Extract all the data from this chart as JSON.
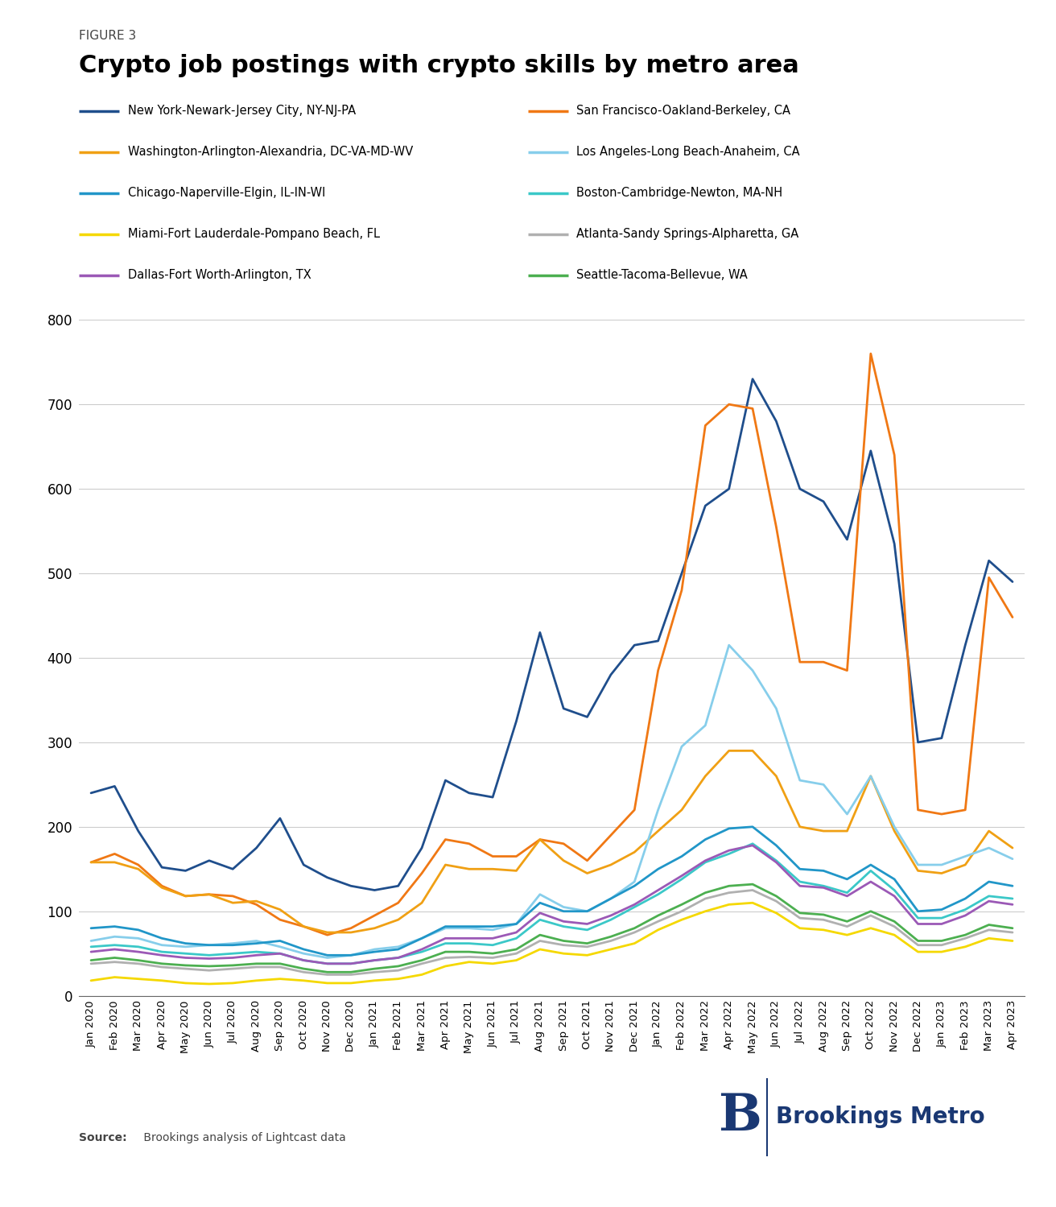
{
  "figure_label": "FIGURE 3",
  "title": "Crypto job postings with crypto skills by metro area",
  "source_bold": "Source:",
  "source_rest": " Brookings analysis of Lightcast data",
  "ylim": [
    0,
    800
  ],
  "yticks": [
    0,
    100,
    200,
    300,
    400,
    500,
    600,
    700,
    800
  ],
  "x_labels": [
    "Jan 2020",
    "Feb 2020",
    "Mar 2020",
    "Apr 2020",
    "May 2020",
    "Jun 2020",
    "Jul 2020",
    "Aug 2020",
    "Sep 2020",
    "Oct 2020",
    "Nov 2020",
    "Dec 2020",
    "Jan 2021",
    "Feb 2021",
    "Mar 2021",
    "Apr 2021",
    "May 2021",
    "Jun 2021",
    "Jul 2021",
    "Aug 2021",
    "Sep 2021",
    "Oct 2021",
    "Nov 2021",
    "Dec 2021",
    "Jan 2022",
    "Feb 2022",
    "Mar 2022",
    "Apr 2022",
    "May 2022",
    "Jun 2022",
    "Jul 2022",
    "Aug 2022",
    "Sep 2022",
    "Oct 2022",
    "Nov 2022",
    "Dec 2022",
    "Jan 2023",
    "Feb 2023",
    "Mar 2023",
    "Apr 2023"
  ],
  "legend_left_indices": [
    0,
    2,
    4,
    6,
    8
  ],
  "legend_right_indices": [
    1,
    3,
    5,
    7,
    9
  ],
  "series": [
    {
      "label": "New York-Newark-Jersey City, NY-NJ-PA",
      "color": "#1f4e8c",
      "linewidth": 2.0,
      "values": [
        240,
        248,
        195,
        152,
        148,
        160,
        150,
        175,
        210,
        155,
        140,
        130,
        125,
        130,
        175,
        255,
        240,
        235,
        325,
        430,
        340,
        330,
        380,
        415,
        420,
        500,
        580,
        600,
        730,
        680,
        600,
        585,
        540,
        645,
        535,
        300,
        305,
        415,
        515,
        490
      ]
    },
    {
      "label": "San Francisco-Oakland-Berkeley, CA",
      "color": "#f07814",
      "linewidth": 2.0,
      "values": [
        158,
        168,
        155,
        130,
        118,
        120,
        118,
        108,
        90,
        82,
        72,
        80,
        95,
        110,
        145,
        185,
        180,
        165,
        165,
        185,
        180,
        160,
        190,
        220,
        385,
        480,
        675,
        700,
        695,
        555,
        395,
        395,
        385,
        760,
        640,
        220,
        215,
        220,
        495,
        448
      ]
    },
    {
      "label": "Washington-Arlington-Alexandria, DC-VA-MD-WV",
      "color": "#f0a014",
      "linewidth": 2.0,
      "values": [
        158,
        158,
        150,
        128,
        118,
        120,
        110,
        112,
        102,
        82,
        75,
        75,
        80,
        90,
        110,
        155,
        150,
        150,
        148,
        185,
        160,
        145,
        155,
        170,
        195,
        220,
        260,
        290,
        290,
        260,
        200,
        195,
        195,
        260,
        195,
        148,
        145,
        155,
        195,
        175
      ]
    },
    {
      "label": "Los Angeles-Long Beach-Anaheim, CA",
      "color": "#87ceeb",
      "linewidth": 2.0,
      "values": [
        65,
        70,
        68,
        60,
        58,
        60,
        62,
        65,
        58,
        50,
        45,
        48,
        55,
        58,
        68,
        80,
        80,
        78,
        85,
        120,
        105,
        100,
        115,
        135,
        220,
        295,
        320,
        415,
        385,
        340,
        255,
        250,
        215,
        260,
        200,
        155,
        155,
        165,
        175,
        162
      ]
    },
    {
      "label": "Chicago-Naperville-Elgin, IL-IN-WI",
      "color": "#2196c8",
      "linewidth": 2.0,
      "values": [
        80,
        82,
        78,
        68,
        62,
        60,
        60,
        62,
        65,
        55,
        48,
        48,
        52,
        55,
        68,
        82,
        82,
        82,
        85,
        110,
        100,
        100,
        115,
        130,
        150,
        165,
        185,
        198,
        200,
        178,
        150,
        148,
        138,
        155,
        138,
        100,
        102,
        115,
        135,
        130
      ]
    },
    {
      "label": "Boston-Cambridge-Newton, MA-NH",
      "color": "#3bc8c8",
      "linewidth": 2.0,
      "values": [
        58,
        60,
        58,
        52,
        50,
        48,
        50,
        52,
        50,
        42,
        38,
        38,
        42,
        45,
        52,
        62,
        62,
        60,
        68,
        90,
        82,
        78,
        90,
        105,
        120,
        138,
        158,
        168,
        180,
        160,
        135,
        130,
        122,
        148,
        125,
        92,
        92,
        102,
        118,
        115
      ]
    },
    {
      "label": "Miami-Fort Lauderdale-Pompano Beach, FL",
      "color": "#f5d800",
      "linewidth": 2.0,
      "values": [
        18,
        22,
        20,
        18,
        15,
        14,
        15,
        18,
        20,
        18,
        15,
        15,
        18,
        20,
        25,
        35,
        40,
        38,
        42,
        55,
        50,
        48,
        55,
        62,
        78,
        90,
        100,
        108,
        110,
        98,
        80,
        78,
        72,
        80,
        72,
        52,
        52,
        58,
        68,
        65
      ]
    },
    {
      "label": "Atlanta-Sandy Springs-Alpharetta, GA",
      "color": "#b0b0b0",
      "linewidth": 2.0,
      "values": [
        38,
        40,
        38,
        34,
        32,
        30,
        32,
        34,
        34,
        28,
        25,
        25,
        28,
        30,
        38,
        45,
        46,
        45,
        50,
        65,
        60,
        58,
        65,
        75,
        88,
        100,
        115,
        122,
        125,
        112,
        92,
        90,
        82,
        95,
        82,
        60,
        60,
        68,
        78,
        75
      ]
    },
    {
      "label": "Dallas-Fort Worth-Arlington, TX",
      "color": "#9b59b6",
      "linewidth": 2.0,
      "values": [
        52,
        55,
        52,
        48,
        45,
        44,
        45,
        48,
        50,
        42,
        38,
        38,
        42,
        45,
        55,
        68,
        68,
        68,
        75,
        98,
        88,
        85,
        95,
        108,
        125,
        142,
        160,
        172,
        178,
        158,
        130,
        128,
        118,
        135,
        118,
        85,
        85,
        95,
        112,
        108
      ]
    },
    {
      "label": "Seattle-Tacoma-Bellevue, WA",
      "color": "#4caf50",
      "linewidth": 2.0,
      "values": [
        42,
        45,
        42,
        38,
        36,
        35,
        36,
        38,
        38,
        32,
        28,
        28,
        32,
        35,
        42,
        52,
        52,
        50,
        55,
        72,
        65,
        62,
        70,
        80,
        95,
        108,
        122,
        130,
        132,
        118,
        98,
        96,
        88,
        100,
        88,
        65,
        65,
        72,
        84,
        80
      ]
    }
  ],
  "brookings_color": "#1a3873",
  "background_color": "#ffffff"
}
